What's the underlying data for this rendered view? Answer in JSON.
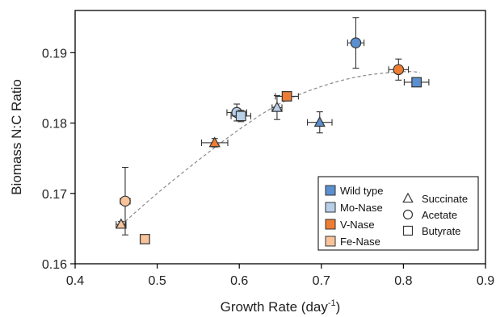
{
  "chart_data": {
    "type": "scatter",
    "xlabel": "Growth Rate (day",
    "xlabel_sup": "-1",
    "xlabel_suffix": ")",
    "ylabel": "Biomass N:C Ratio",
    "xlim": [
      0.4,
      0.9
    ],
    "ylim": [
      0.16,
      0.196
    ],
    "xticks": [
      "0.4",
      "0.5",
      "0.6",
      "0.7",
      "0.8",
      "0.9"
    ],
    "yticks": [
      "0.16",
      "0.17",
      "0.18",
      "0.19"
    ],
    "grid": false,
    "legend_position": "bottom-right",
    "strains": [
      {
        "name": "Wild type",
        "color": "#5b8fcf"
      },
      {
        "name": "Mo-Nase",
        "color": "#b8cfe8"
      },
      {
        "name": "V-Nase",
        "color": "#ee7d33"
      },
      {
        "name": "Fe-Nase",
        "color": "#f8c39a"
      }
    ],
    "substrates": [
      {
        "name": "Succinate",
        "marker": "triangle"
      },
      {
        "name": "Acetate",
        "marker": "circle"
      },
      {
        "name": "Butyrate",
        "marker": "square"
      }
    ],
    "points": [
      {
        "strain": "Fe-Nase",
        "substrate": "Succinate",
        "x": 0.456,
        "y": 0.1656,
        "xerr": 0.006,
        "yerr": 0.0004
      },
      {
        "strain": "Fe-Nase",
        "substrate": "Acetate",
        "x": 0.461,
        "y": 0.1689,
        "xerr": 0.006,
        "yerr": 0.0048
      },
      {
        "strain": "Fe-Nase",
        "substrate": "Butyrate",
        "x": 0.485,
        "y": 0.1635,
        "xerr": 0,
        "yerr": 0
      },
      {
        "strain": "V-Nase",
        "substrate": "Succinate",
        "x": 0.57,
        "y": 0.1772,
        "xerr": 0.016,
        "yerr": 0.0006
      },
      {
        "strain": "Mo-Nase",
        "substrate": "Acetate",
        "x": 0.597,
        "y": 0.1815,
        "xerr": 0.012,
        "yerr": 0.0012
      },
      {
        "strain": "Mo-Nase",
        "substrate": "Butyrate",
        "x": 0.602,
        "y": 0.181,
        "xerr": 0.012,
        "yerr": 0.0008
      },
      {
        "strain": "Mo-Nase",
        "substrate": "Succinate",
        "x": 0.646,
        "y": 0.1822,
        "xerr": 0.006,
        "yerr": 0.0017
      },
      {
        "strain": "V-Nase",
        "substrate": "Butyrate",
        "x": 0.658,
        "y": 0.1838,
        "xerr": 0.014,
        "yerr": 0.0006
      },
      {
        "strain": "Wild type",
        "substrate": "Succinate",
        "x": 0.698,
        "y": 0.1801,
        "xerr": 0.015,
        "yerr": 0.0015
      },
      {
        "strain": "Wild type",
        "substrate": "Acetate",
        "x": 0.742,
        "y": 0.1914,
        "xerr": 0.01,
        "yerr": 0.0036
      },
      {
        "strain": "V-Nase",
        "substrate": "Acetate",
        "x": 0.794,
        "y": 0.1876,
        "xerr": 0.012,
        "yerr": 0.0015
      },
      {
        "strain": "Wild type",
        "substrate": "Butyrate",
        "x": 0.816,
        "y": 0.1858,
        "xerr": 0.015,
        "yerr": 0
      }
    ],
    "fit_curve": {
      "style": "dashed",
      "color": "#8a8a8a",
      "points": [
        [
          0.456,
          0.1655
        ],
        [
          0.5,
          0.17
        ],
        [
          0.55,
          0.1747
        ],
        [
          0.6,
          0.1791
        ],
        [
          0.65,
          0.1828
        ],
        [
          0.7,
          0.1852
        ],
        [
          0.75,
          0.1867
        ],
        [
          0.8,
          0.1873
        ],
        [
          0.82,
          0.1872
        ]
      ]
    }
  }
}
